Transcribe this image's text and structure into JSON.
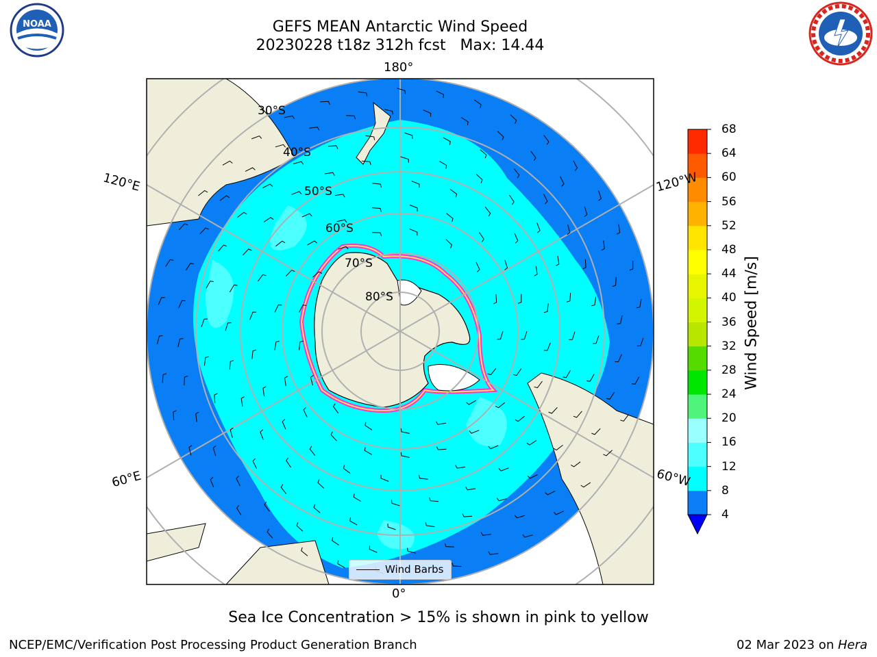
{
  "header": {
    "title_line1": "GEFS MEAN Antarctic Wind Speed",
    "title_line2": "20230228 t18z 312h fcst   Max: 14.44"
  },
  "map": {
    "projection": "south polar stereographic",
    "longitude_labels": [
      "180°",
      "120°E",
      "120°W",
      "60°E",
      "60°W",
      "0°"
    ],
    "latitude_labels": [
      "30°S",
      "40°S",
      "50°S",
      "60°S",
      "70°S",
      "80°S"
    ],
    "legend_label": "Wind Barbs"
  },
  "colorbar": {
    "label": "Wind Speed [m/s]",
    "ticks": [
      "68",
      "64",
      "60",
      "56",
      "52",
      "48",
      "44",
      "40",
      "36",
      "32",
      "28",
      "24",
      "20",
      "16",
      "12",
      "8",
      "4"
    ],
    "colors_low_to_high": [
      "#0a7ef5",
      "#00ffff",
      "#4dffff",
      "#99ffff",
      "#4ff57a",
      "#00e600",
      "#56db00",
      "#b8e600",
      "#d4f500",
      "#e8f500",
      "#ffff00",
      "#ffe500",
      "#ffb300",
      "#ff8c00",
      "#ff5a00",
      "#ff2a00",
      "#ff0000"
    ],
    "under_color": "#0000ff"
  },
  "footer": {
    "note": "Sea Ice Concentration > 15% is shown in pink to yellow",
    "credit": "NCEP/EMC/Verification Post Processing Product Generation Branch",
    "date": "02 Mar 2023 on ",
    "machine": "Hera"
  },
  "logos": {
    "noaa": "NOAA",
    "nws": "NATIONAL WEATHER SERVICE"
  }
}
